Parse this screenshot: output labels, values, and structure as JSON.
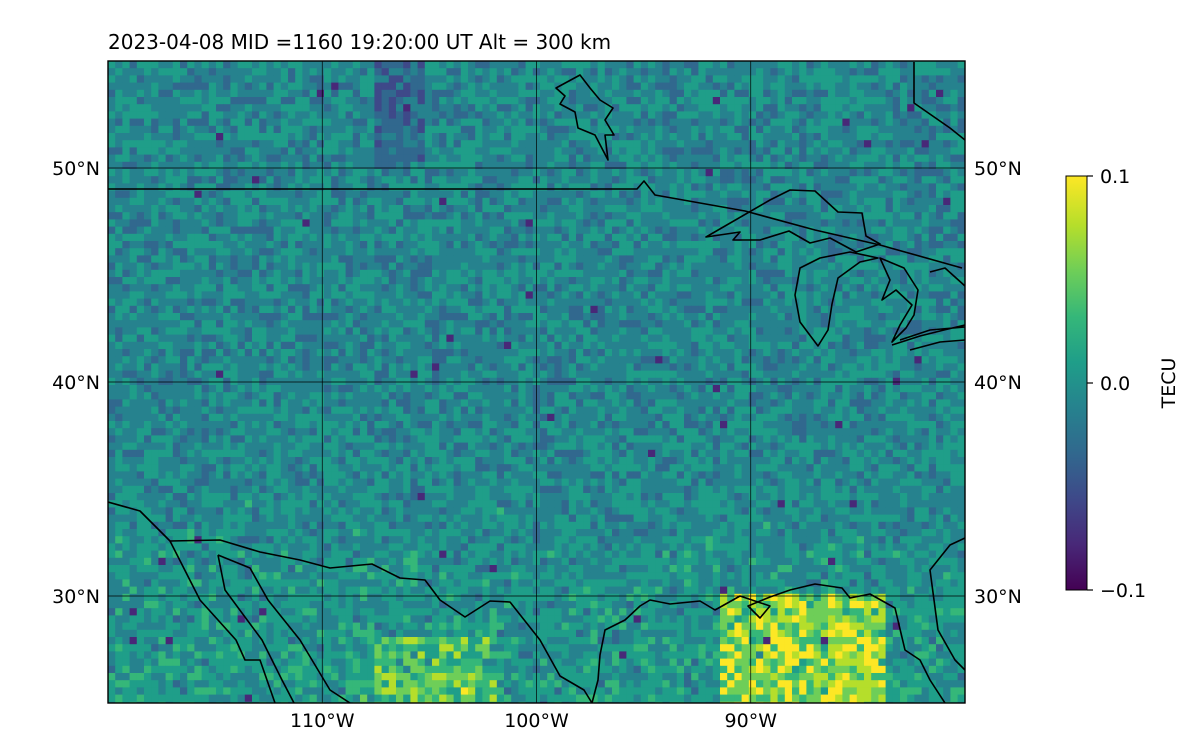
{
  "header": {
    "title": "2023-04-08  MID =1160    19:20:00  UT  Alt = 300 km"
  },
  "map": {
    "lon_range": [
      -120,
      -80
    ],
    "lat_range": [
      25,
      55
    ],
    "parallels": [
      {
        "lat": 50,
        "label": "50°N"
      },
      {
        "lat": 40,
        "label": "40°N"
      },
      {
        "lat": 30,
        "label": "30°N"
      }
    ],
    "meridians": [
      {
        "lon": -110,
        "label": "110°W"
      },
      {
        "lon": -100,
        "label": "100°W"
      },
      {
        "lon": -90,
        "label": "90°W"
      }
    ],
    "grid": true,
    "coastlines": true,
    "field": "TEC perturbation"
  },
  "colorbar": {
    "label": "TECU",
    "colormap": "viridis",
    "vmin": -0.1,
    "vmax": 0.1,
    "ticks": [
      {
        "value": 0.1,
        "label": "0.1"
      },
      {
        "value": 0.0,
        "label": "0.0"
      },
      {
        "value": -0.1,
        "label": "−0.1"
      }
    ],
    "placement": "right"
  },
  "colors": {
    "viridis": [
      "#440154",
      "#482878",
      "#3e4989",
      "#31688e",
      "#26828e",
      "#1f9e89",
      "#35b779",
      "#6ece58",
      "#b5de2b",
      "#fde725"
    ],
    "boundary": "#000000"
  }
}
